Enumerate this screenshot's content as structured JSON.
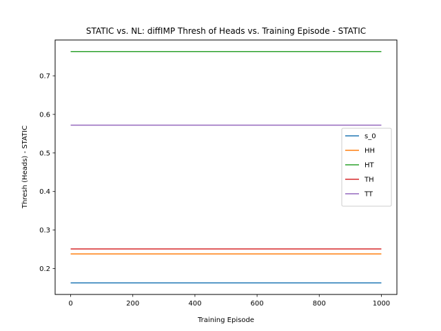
{
  "chart_data": {
    "type": "line",
    "title": "STATIC vs. NL: diffIMP Thresh of Heads vs. Training Episode - STATIC",
    "xlabel": "Training Episode",
    "ylabel": "Thresh (Heads) - STATIC",
    "xlim": [
      -50,
      1050
    ],
    "ylim": [
      0.133,
      0.793
    ],
    "xticks": [
      0,
      200,
      400,
      600,
      800,
      1000
    ],
    "yticks": [
      0.2,
      0.3,
      0.4,
      0.5,
      0.6,
      0.7
    ],
    "grid": false,
    "legend_position": "center-right",
    "series": [
      {
        "name": "s_0",
        "color": "#1f77b4",
        "x": [
          0,
          1000
        ],
        "y": [
          0.163,
          0.163
        ]
      },
      {
        "name": "HH",
        "color": "#ff7f0e",
        "x": [
          0,
          1000
        ],
        "y": [
          0.238,
          0.238
        ]
      },
      {
        "name": "HT",
        "color": "#2ca02c",
        "x": [
          0,
          1000
        ],
        "y": [
          0.763,
          0.763
        ]
      },
      {
        "name": "TH",
        "color": "#d62728",
        "x": [
          0,
          1000
        ],
        "y": [
          0.251,
          0.251
        ]
      },
      {
        "name": "TT",
        "color": "#9467bd",
        "x": [
          0,
          1000
        ],
        "y": [
          0.572,
          0.572
        ]
      }
    ]
  }
}
